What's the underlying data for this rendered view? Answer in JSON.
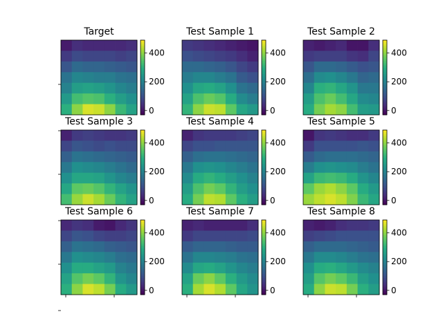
{
  "chart_data": {
    "type": "heatmap",
    "layout": "3x3 grid of heatmap panels, each with its own vertical colorbar on the right",
    "colormap": "viridis",
    "color_range": [
      -30,
      490
    ],
    "colorbar_ticks": [
      "0",
      "200",
      "400"
    ],
    "colorbar_tick_values": [
      0,
      200,
      400
    ],
    "grid": false,
    "panels": [
      {
        "title": "Target",
        "values": [
          [
            10,
            40,
            30,
            30,
            30,
            30,
            40
          ],
          [
            60,
            90,
            80,
            80,
            80,
            70,
            80
          ],
          [
            110,
            150,
            140,
            140,
            130,
            120,
            110
          ],
          [
            170,
            210,
            200,
            190,
            190,
            170,
            160
          ],
          [
            200,
            260,
            270,
            260,
            240,
            210,
            190
          ],
          [
            250,
            330,
            350,
            340,
            300,
            260,
            230
          ],
          [
            300,
            400,
            460,
            450,
            400,
            320,
            270
          ]
        ]
      },
      {
        "title": "Test Sample 1",
        "values": [
          [
            60,
            50,
            40,
            30,
            20,
            10,
            0
          ],
          [
            100,
            90,
            80,
            70,
            60,
            40,
            20
          ],
          [
            150,
            150,
            140,
            130,
            110,
            80,
            60
          ],
          [
            190,
            210,
            210,
            190,
            170,
            120,
            100
          ],
          [
            230,
            280,
            290,
            270,
            230,
            170,
            150
          ],
          [
            270,
            340,
            370,
            350,
            290,
            220,
            190
          ],
          [
            310,
            400,
            450,
            440,
            360,
            280,
            250
          ]
        ]
      },
      {
        "title": "Test Sample 2",
        "values": [
          [
            20,
            10,
            20,
            30,
            0,
            0,
            40
          ],
          [
            60,
            70,
            70,
            70,
            50,
            40,
            80
          ],
          [
            110,
            150,
            150,
            140,
            120,
            100,
            110
          ],
          [
            160,
            220,
            230,
            210,
            180,
            140,
            150
          ],
          [
            210,
            300,
            310,
            280,
            240,
            180,
            180
          ],
          [
            260,
            340,
            370,
            330,
            280,
            220,
            210
          ],
          [
            290,
            380,
            420,
            400,
            330,
            260,
            250
          ]
        ]
      },
      {
        "title": "Test Sample 3",
        "values": [
          [
            20,
            60,
            70,
            60,
            50,
            50,
            60
          ],
          [
            80,
            110,
            100,
            90,
            100,
            90,
            90
          ],
          [
            130,
            170,
            160,
            150,
            140,
            130,
            120
          ],
          [
            180,
            230,
            220,
            210,
            190,
            170,
            150
          ],
          [
            230,
            280,
            280,
            270,
            240,
            210,
            190
          ],
          [
            280,
            360,
            370,
            350,
            310,
            270,
            240
          ],
          [
            330,
            410,
            450,
            420,
            370,
            310,
            270
          ]
        ]
      },
      {
        "title": "Test Sample 4",
        "values": [
          [
            20,
            50,
            60,
            60,
            60,
            70,
            80
          ],
          [
            80,
            100,
            100,
            110,
            110,
            110,
            110
          ],
          [
            130,
            160,
            170,
            170,
            160,
            150,
            140
          ],
          [
            180,
            230,
            240,
            230,
            210,
            190,
            170
          ],
          [
            220,
            290,
            310,
            290,
            260,
            230,
            200
          ],
          [
            260,
            340,
            380,
            360,
            310,
            260,
            230
          ],
          [
            290,
            380,
            440,
            430,
            360,
            300,
            260
          ]
        ]
      },
      {
        "title": "Test Sample 5",
        "values": [
          [
            0,
            50,
            60,
            50,
            40,
            40,
            60
          ],
          [
            60,
            100,
            100,
            100,
            100,
            110,
            100
          ],
          [
            120,
            150,
            160,
            160,
            160,
            150,
            140
          ],
          [
            190,
            230,
            240,
            230,
            220,
            190,
            170
          ],
          [
            270,
            320,
            330,
            320,
            290,
            240,
            210
          ],
          [
            360,
            410,
            430,
            400,
            360,
            290,
            250
          ],
          [
            410,
            440,
            460,
            440,
            390,
            320,
            280
          ]
        ]
      },
      {
        "title": "Test Sample 6",
        "values": [
          [
            30,
            50,
            40,
            10,
            0,
            30,
            50
          ],
          [
            80,
            110,
            100,
            80,
            70,
            70,
            80
          ],
          [
            130,
            170,
            160,
            150,
            130,
            120,
            110
          ],
          [
            180,
            230,
            220,
            210,
            190,
            160,
            150
          ],
          [
            230,
            290,
            290,
            270,
            250,
            200,
            180
          ],
          [
            270,
            350,
            380,
            360,
            310,
            240,
            210
          ],
          [
            300,
            400,
            460,
            440,
            380,
            290,
            250
          ]
        ]
      },
      {
        "title": "Test Sample 7",
        "values": [
          [
            20,
            30,
            20,
            20,
            20,
            20,
            40
          ],
          [
            60,
            80,
            80,
            80,
            80,
            80,
            90
          ],
          [
            120,
            140,
            140,
            140,
            130,
            120,
            120
          ],
          [
            170,
            210,
            210,
            200,
            190,
            170,
            160
          ],
          [
            220,
            280,
            290,
            270,
            240,
            210,
            190
          ],
          [
            270,
            370,
            400,
            360,
            300,
            250,
            220
          ],
          [
            300,
            420,
            460,
            430,
            360,
            280,
            240
          ]
        ]
      },
      {
        "title": "Test Sample 8",
        "values": [
          [
            20,
            10,
            20,
            40,
            50,
            50,
            60
          ],
          [
            70,
            80,
            90,
            100,
            100,
            100,
            100
          ],
          [
            130,
            150,
            150,
            150,
            140,
            130,
            120
          ],
          [
            180,
            220,
            220,
            210,
            190,
            170,
            160
          ],
          [
            230,
            290,
            300,
            280,
            250,
            220,
            200
          ],
          [
            260,
            350,
            380,
            360,
            320,
            260,
            230
          ],
          [
            290,
            400,
            450,
            440,
            380,
            300,
            260
          ]
        ]
      }
    ]
  }
}
